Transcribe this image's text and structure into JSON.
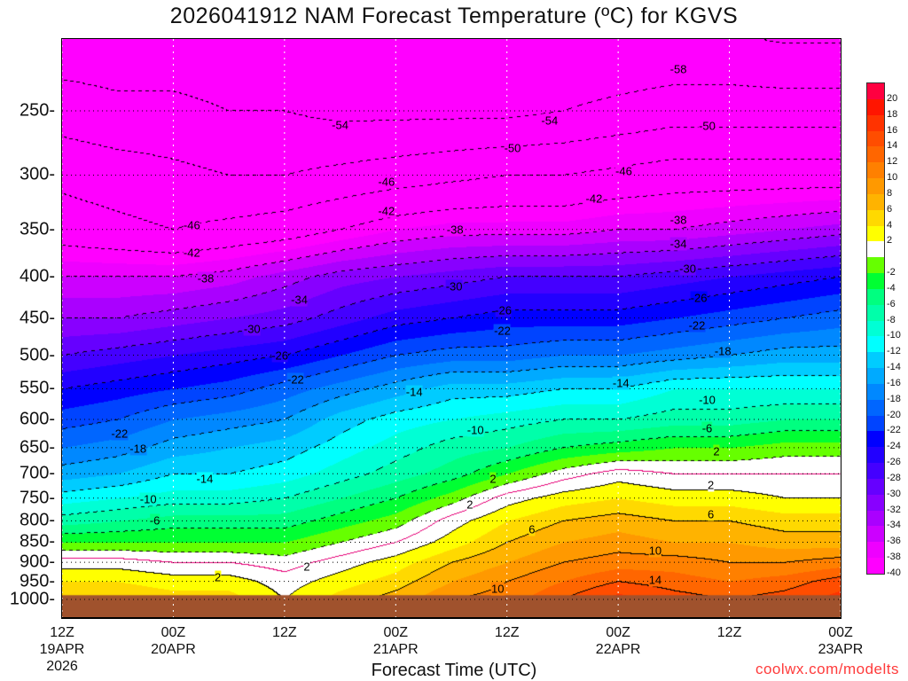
{
  "chart_data": {
    "type": "heatmap",
    "title": "2026041912 NAM Forecast Temperature (ºC) for KGVS",
    "xlabel": "Forecast Time (UTC)",
    "ylabel": "Pressure (hPa)",
    "credit": "coolwx.com/modelts",
    "x_hours": [
      0,
      6,
      12,
      18,
      24,
      30,
      36,
      42,
      48,
      54,
      60,
      66,
      72,
      78,
      84
    ],
    "xlim_hours": [
      0,
      84
    ],
    "ylim_hpa": [
      1051,
      204
    ],
    "x_ticks": [
      {
        "hour": 0,
        "lines": [
          "12Z",
          "19APR",
          "2026"
        ]
      },
      {
        "hour": 12,
        "lines": [
          "00Z",
          "20APR"
        ]
      },
      {
        "hour": 24,
        "lines": [
          "12Z"
        ]
      },
      {
        "hour": 36,
        "lines": [
          "00Z",
          "21APR"
        ]
      },
      {
        "hour": 48,
        "lines": [
          "12Z"
        ]
      },
      {
        "hour": 60,
        "lines": [
          "00Z",
          "22APR"
        ]
      },
      {
        "hour": 72,
        "lines": [
          "12Z"
        ]
      },
      {
        "hour": 84,
        "lines": [
          "00Z",
          "23APR"
        ]
      }
    ],
    "y_ticks": [
      250,
      300,
      350,
      400,
      450,
      500,
      550,
      600,
      650,
      700,
      750,
      800,
      850,
      900,
      950,
      1000
    ],
    "pressure_levels": [
      200,
      250,
      300,
      350,
      400,
      450,
      500,
      550,
      600,
      650,
      700,
      750,
      800,
      850,
      900,
      950,
      1000
    ],
    "temperature_c": [
      [
        -57,
        -57,
        -57,
        -57,
        -57,
        -57,
        -57,
        -58,
        -58,
        -58,
        -58,
        -58,
        -58,
        -59,
        -59
      ],
      [
        -52,
        -53,
        -53,
        -54,
        -54,
        -55,
        -55,
        -55,
        -55,
        -54,
        -53,
        -52,
        -52,
        -52,
        -52
      ],
      [
        -47,
        -48,
        -49,
        -50,
        -50,
        -49,
        -48,
        -47,
        -46,
        -46,
        -45,
        -44,
        -44,
        -44,
        -44
      ],
      [
        -44,
        -45,
        -46,
        -45,
        -44,
        -42,
        -40,
        -39,
        -39,
        -39,
        -38,
        -38,
        -37,
        -36,
        -35
      ],
      [
        -38,
        -38,
        -38,
        -37,
        -35,
        -33,
        -32,
        -31,
        -30,
        -30,
        -30,
        -29,
        -28,
        -27,
        -26
      ],
      [
        -34,
        -34,
        -33,
        -32,
        -31,
        -29,
        -27,
        -26,
        -25,
        -25,
        -25,
        -24,
        -23,
        -22,
        -21
      ],
      [
        -30,
        -29,
        -28,
        -27,
        -26,
        -24,
        -22,
        -21,
        -21,
        -20,
        -20,
        -19,
        -18,
        -17,
        -17
      ],
      [
        -26,
        -25,
        -24,
        -23,
        -21,
        -19,
        -17,
        -15,
        -15,
        -14,
        -14,
        -12,
        -12,
        -12,
        -12
      ],
      [
        -23,
        -22,
        -20,
        -19,
        -18,
        -15,
        -13,
        -12,
        -11,
        -10,
        -10,
        -9,
        -9,
        -8,
        -8
      ],
      [
        -20,
        -19,
        -17,
        -16,
        -15,
        -13,
        -11,
        -9,
        -8,
        -6,
        -5,
        -4,
        -4,
        -3,
        -3
      ],
      [
        -17,
        -16,
        -14,
        -14,
        -13,
        -11,
        -9,
        -7,
        -4,
        -1,
        1,
        0,
        0,
        0,
        0
      ],
      [
        -13,
        -12,
        -11,
        -11,
        -10,
        -8,
        -6,
        -3,
        1,
        3,
        4,
        3,
        3,
        2,
        2
      ],
      [
        -9,
        -8,
        -7,
        -7,
        -7,
        -5,
        -3,
        1,
        4,
        6,
        7,
        6,
        6,
        5,
        5
      ],
      [
        -4,
        -4,
        -4,
        -4,
        -4,
        -2,
        0,
        3,
        6,
        8,
        9,
        8,
        8,
        7,
        7
      ],
      [
        1,
        1,
        0,
        0,
        -1,
        1,
        3,
        6,
        8,
        10,
        11,
        11,
        10,
        10,
        11
      ],
      [
        4,
        4,
        3,
        3,
        1,
        3,
        5,
        8,
        10,
        12,
        14,
        13,
        12,
        13,
        15
      ],
      [
        6,
        6,
        5,
        5,
        2,
        5,
        7,
        10,
        11,
        14,
        17,
        15,
        14,
        15,
        17
      ]
    ],
    "surface_pressure_hpa": 988,
    "contour_interval_c": 4,
    "contour_labels": [
      {
        "hour": 66.5,
        "p": 222,
        "text": "-58"
      },
      {
        "hour": 30,
        "p": 260,
        "text": "-54"
      },
      {
        "hour": 52.6,
        "p": 257,
        "text": "-54"
      },
      {
        "hour": 48.6,
        "p": 278,
        "text": "-50"
      },
      {
        "hour": 69.6,
        "p": 261,
        "text": "-50"
      },
      {
        "hour": 35,
        "p": 306,
        "text": "-46"
      },
      {
        "hour": 60.6,
        "p": 297,
        "text": "-46"
      },
      {
        "hour": 35,
        "p": 332,
        "text": "-42"
      },
      {
        "hour": 57.4,
        "p": 321,
        "text": "-42"
      },
      {
        "hour": 14,
        "p": 346,
        "text": "-46"
      },
      {
        "hour": 14,
        "p": 374,
        "text": "-42"
      },
      {
        "hour": 42.4,
        "p": 350,
        "text": "-38"
      },
      {
        "hour": 66.5,
        "p": 341,
        "text": "-38"
      },
      {
        "hour": 66.5,
        "p": 365,
        "text": "-34"
      },
      {
        "hour": 15.5,
        "p": 402,
        "text": "-38"
      },
      {
        "hour": 25.6,
        "p": 427,
        "text": "-34"
      },
      {
        "hour": 42.3,
        "p": 411,
        "text": "-30"
      },
      {
        "hour": 67.5,
        "p": 391,
        "text": "-30"
      },
      {
        "hour": 47.6,
        "p": 440,
        "text": "-26"
      },
      {
        "hour": 68.7,
        "p": 425,
        "text": "-26"
      },
      {
        "hour": 20.5,
        "p": 464,
        "text": "-30"
      },
      {
        "hour": 47.5,
        "p": 466,
        "text": "-22"
      },
      {
        "hour": 68.5,
        "p": 460,
        "text": "-22"
      },
      {
        "hour": 23.5,
        "p": 500,
        "text": "-26"
      },
      {
        "hour": 71.3,
        "p": 494,
        "text": "-18"
      },
      {
        "hour": 25.2,
        "p": 536,
        "text": "-22"
      },
      {
        "hour": 38,
        "p": 555,
        "text": "-14"
      },
      {
        "hour": 60.3,
        "p": 541,
        "text": "-14"
      },
      {
        "hour": 69.6,
        "p": 568,
        "text": "-10"
      },
      {
        "hour": 44.6,
        "p": 619,
        "text": "-10"
      },
      {
        "hour": 69.6,
        "p": 616,
        "text": "-6"
      },
      {
        "hour": 6.2,
        "p": 625,
        "text": "-22"
      },
      {
        "hour": 8.2,
        "p": 652,
        "text": "-18"
      },
      {
        "hour": 15.4,
        "p": 711,
        "text": "-14"
      },
      {
        "hour": 70.6,
        "p": 657,
        "text": "2"
      },
      {
        "hour": 46.5,
        "p": 710,
        "text": "2"
      },
      {
        "hour": 70,
        "p": 722,
        "text": "2"
      },
      {
        "hour": 9.3,
        "p": 752,
        "text": "-10"
      },
      {
        "hour": 44,
        "p": 764,
        "text": "2"
      },
      {
        "hour": 70,
        "p": 785,
        "text": "6"
      },
      {
        "hour": 10,
        "p": 800,
        "text": "-6"
      },
      {
        "hour": 50.7,
        "p": 820,
        "text": "6"
      },
      {
        "hour": 26.4,
        "p": 911,
        "text": "2"
      },
      {
        "hour": 16.8,
        "p": 938,
        "text": "2"
      },
      {
        "hour": 64,
        "p": 870,
        "text": "10"
      },
      {
        "hour": 64,
        "p": 947,
        "text": "14"
      },
      {
        "hour": 47,
        "p": 969,
        "text": "10"
      }
    ],
    "colorbar": {
      "labels": [
        "20",
        "18",
        "16",
        "14",
        "12",
        "10",
        "8",
        "6",
        "4",
        "2",
        "-2",
        "-4",
        "-6",
        "-8",
        "-10",
        "-12",
        "-14",
        "-16",
        "-18",
        "-20",
        "-22",
        "-24",
        "-26",
        "-28",
        "-30",
        "-32",
        "-34",
        "-36",
        "-38",
        "-40"
      ],
      "colors": [
        "#ff0040",
        "#ff1500",
        "#ff3300",
        "#ff4d00",
        "#ff6600",
        "#ff8000",
        "#ff9900",
        "#ffb300",
        "#ffd900",
        "#ffff00",
        "#ffffff",
        "#66ff00",
        "#00ff33",
        "#00ff80",
        "#00ffaa",
        "#00ffd5",
        "#00ffff",
        "#00ccff",
        "#00aaff",
        "#0088ff",
        "#0066ff",
        "#0044ff",
        "#0000ff",
        "#2200ff",
        "#4400ff",
        "#6600ff",
        "#8800ff",
        "#aa00ff",
        "#cc00ff",
        "#ee00ff",
        "#ff00ff"
      ]
    },
    "terrain_color": "#a0522d"
  }
}
